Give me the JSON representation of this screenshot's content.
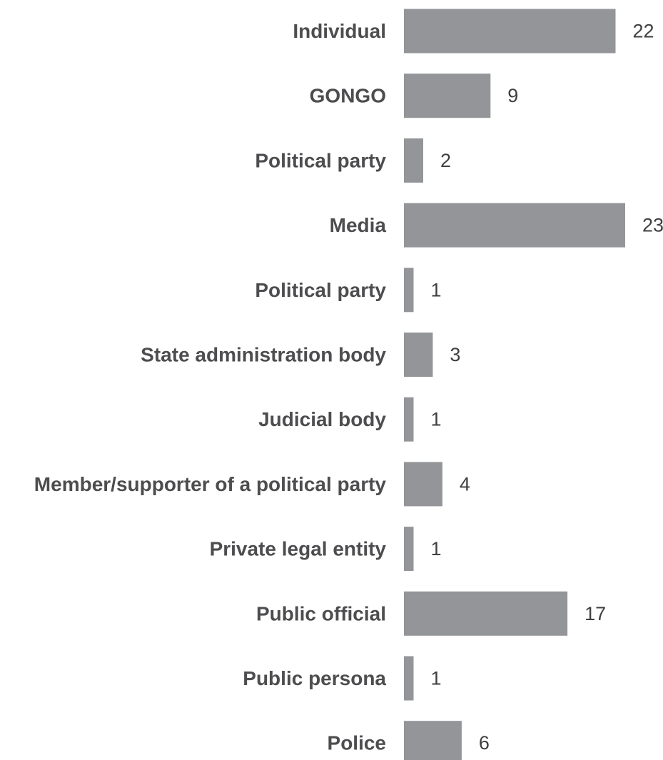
{
  "chart_data": {
    "type": "bar",
    "orientation": "horizontal",
    "categories": [
      "Individual",
      "GONGO",
      "Political party",
      "Media",
      "Political party",
      "State administration body",
      "Judicial body",
      "Member/supporter of a political party",
      "Private legal entity",
      "Public official",
      "Public persona",
      "Police"
    ],
    "values": [
      22,
      9,
      2,
      23,
      1,
      3,
      1,
      4,
      1,
      17,
      1,
      6
    ],
    "title": "",
    "xlabel": "",
    "ylabel": "",
    "xlim": [
      0,
      23
    ],
    "grid": false,
    "legend": "none",
    "colors": {
      "bar": "#939598",
      "category_text": "#4d4d4f",
      "value_text": "#3f3f41"
    }
  }
}
